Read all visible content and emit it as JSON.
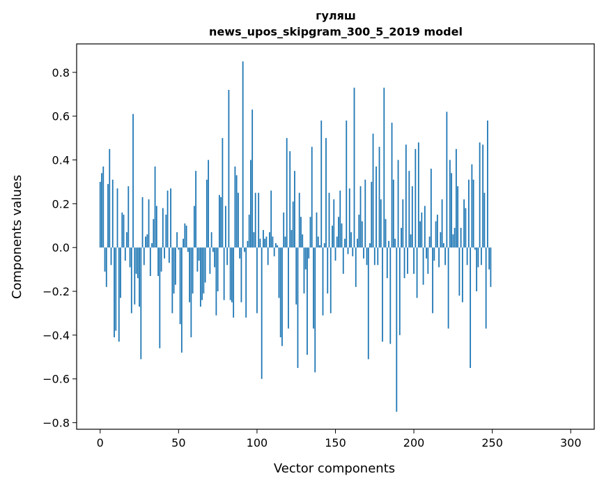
{
  "chart_data": {
    "type": "bar",
    "title": "гуляш",
    "subtitle": "news_upos_skipgram_300_5_2019 model",
    "xlabel": "Vector components",
    "ylabel": "Components values",
    "xlim": [
      -15,
      315
    ],
    "ylim": [
      -0.83,
      0.93
    ],
    "xticks": [
      0,
      50,
      100,
      150,
      200,
      250,
      300
    ],
    "xtick_labels": [
      "0",
      "50",
      "100",
      "150",
      "200",
      "250",
      "300"
    ],
    "yticks": [
      -0.8,
      -0.6,
      -0.4,
      -0.2,
      0.0,
      0.2,
      0.4,
      0.6,
      0.8
    ],
    "ytick_labels": [
      "−0.8",
      "−0.6",
      "−0.4",
      "−0.2",
      "0.0",
      "0.2",
      "0.4",
      "0.6",
      "0.8"
    ],
    "grid": false,
    "bar_color": "#1f77b4",
    "series": [
      {
        "values": [
          0.3,
          0.34,
          0.37,
          -0.11,
          -0.18,
          0.29,
          0.45,
          -0.08,
          0.31,
          -0.41,
          -0.38,
          0.27,
          -0.43,
          -0.23,
          0.16,
          0.15,
          -0.06,
          0.07,
          0.28,
          -0.09,
          -0.3,
          0.61,
          -0.26,
          -0.12,
          -0.14,
          -0.27,
          -0.51,
          0.23,
          -0.08,
          0.05,
          0.06,
          0.22,
          -0.13,
          0.02,
          0.13,
          0.37,
          0.19,
          -0.13,
          -0.46,
          -0.11,
          0.18,
          -0.05,
          0.15,
          0.26,
          -0.07,
          0.27,
          -0.3,
          -0.21,
          -0.17,
          0.07,
          -0.01,
          -0.35,
          -0.48,
          0.04,
          0.11,
          0.1,
          -0.02,
          -0.25,
          -0.41,
          -0.21,
          0.19,
          0.35,
          -0.11,
          -0.06,
          -0.27,
          -0.24,
          -0.21,
          -0.16,
          0.31,
          0.4,
          -0.12,
          0.07,
          -0.02,
          -0.09,
          -0.31,
          -0.2,
          0.24,
          0.23,
          0.5,
          -0.24,
          0.19,
          -0.08,
          0.72,
          -0.24,
          -0.25,
          -0.32,
          0.37,
          0.33,
          0.25,
          -0.05,
          -0.25,
          0.85,
          -0.02,
          -0.32,
          0.03,
          0.15,
          0.4,
          0.63,
          0.07,
          0.25,
          -0.3,
          0.25,
          0.04,
          -0.6,
          0.08,
          0.04,
          0.05,
          -0.08,
          0.07,
          0.26,
          0.05,
          -0.04,
          0.02,
          0.01,
          -0.23,
          -0.41,
          -0.45,
          0.16,
          0.05,
          0.5,
          -0.37,
          0.44,
          0.08,
          0.21,
          0.35,
          -0.26,
          -0.55,
          0.25,
          0.14,
          0.06,
          -0.21,
          -0.1,
          -0.49,
          -0.05,
          0.14,
          0.46,
          -0.37,
          -0.57,
          0.16,
          0.05,
          0.01,
          0.58,
          -0.31,
          0.02,
          0.5,
          -0.21,
          0.25,
          -0.3,
          0.1,
          0.22,
          -0.06,
          0.05,
          0.14,
          0.26,
          0.11,
          -0.12,
          0.04,
          0.58,
          -0.03,
          0.27,
          0.07,
          -0.04,
          0.73,
          -0.18,
          0.04,
          0.15,
          0.28,
          0.12,
          -0.05,
          0.31,
          -0.08,
          -0.51,
          0.02,
          0.3,
          0.52,
          -0.08,
          0.37,
          -0.08,
          0.46,
          0.22,
          -0.43,
          0.73,
          0.13,
          -0.14,
          0.03,
          -0.44,
          0.57,
          0.31,
          0.04,
          -0.75,
          0.4,
          -0.4,
          0.09,
          0.22,
          -0.14,
          0.47,
          -0.12,
          0.35,
          0.06,
          0.28,
          -0.12,
          0.45,
          -0.23,
          0.48,
          0.12,
          0.16,
          -0.17,
          0.19,
          -0.05,
          -0.12,
          0.05,
          0.36,
          -0.3,
          -0.06,
          0.12,
          0.15,
          -0.09,
          0.07,
          0.22,
          0.02,
          -0.08,
          0.62,
          -0.37,
          0.4,
          0.34,
          0.06,
          0.09,
          0.45,
          0.28,
          -0.22,
          0.09,
          -0.25,
          0.22,
          0.18,
          -0.08,
          0.31,
          -0.55,
          0.38,
          0.31,
          -0.01,
          -0.2,
          -0.09,
          0.48,
          -0.08,
          0.47,
          0.25,
          -0.37,
          0.58,
          -0.1,
          -0.18
        ]
      }
    ]
  }
}
